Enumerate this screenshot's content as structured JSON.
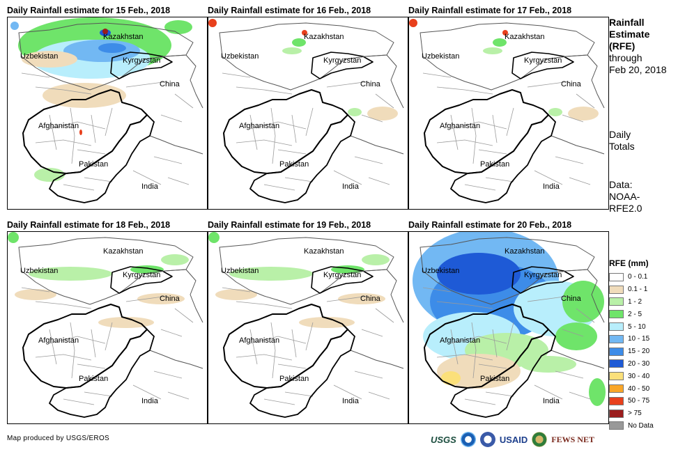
{
  "panels": [
    {
      "title": "Daily Rainfall estimate for 15 Feb., 2018",
      "intensity": "moderate-north"
    },
    {
      "title": "Daily Rainfall estimate for 16 Feb., 2018",
      "intensity": "dry"
    },
    {
      "title": "Daily Rainfall estimate for 17 Feb., 2018",
      "intensity": "dry"
    },
    {
      "title": "Daily Rainfall estimate for 18 Feb., 2018",
      "intensity": "light"
    },
    {
      "title": "Daily Rainfall estimate for 19 Feb., 2018",
      "intensity": "light"
    },
    {
      "title": "Daily Rainfall estimate for 20 Feb., 2018",
      "intensity": "heavy"
    }
  ],
  "map_labels": {
    "kazakhstan": "Kazakhstan",
    "uzbekistan": "Uzbekistan",
    "kyrgyzstan": "Kyrgyzstan",
    "china": "China",
    "afghanistan": "Afghanistan",
    "pakistan": "Pakistan",
    "india": "India"
  },
  "side": {
    "title_lines": [
      "Rainfall",
      "Estimate",
      "(RFE)"
    ],
    "through_lines": [
      "through",
      "Feb 20, 2018"
    ],
    "daily_lines": [
      "Daily",
      "Totals"
    ],
    "data_lines": [
      "Data:",
      "NOAA-",
      "RFE2.0"
    ]
  },
  "legend": {
    "title": "RFE (mm)",
    "items": [
      {
        "label": "0 - 0.1",
        "color": "#ffffff"
      },
      {
        "label": "0.1 - 1",
        "color": "#f0dcbb"
      },
      {
        "label": "1 - 2",
        "color": "#b9f0a8"
      },
      {
        "label": "2 - 5",
        "color": "#6fe46a"
      },
      {
        "label": "5 - 10",
        "color": "#b8eefc"
      },
      {
        "label": "10 - 15",
        "color": "#72b8f3"
      },
      {
        "label": "15 - 20",
        "color": "#3d8ce8"
      },
      {
        "label": "20 - 30",
        "color": "#1e5ad6"
      },
      {
        "label": "30 - 40",
        "color": "#fbe07a"
      },
      {
        "label": "40 - 50",
        "color": "#f9a628"
      },
      {
        "label": "50 - 75",
        "color": "#e8401c"
      },
      {
        "label": "> 75",
        "color": "#9b1c1c"
      },
      {
        "label": "No Data",
        "color": "#999999"
      }
    ]
  },
  "credit": "Map produced by USGS/EROS",
  "logos": {
    "usgs": "USGS",
    "usaid": "USAID",
    "fews": "FEWS NET"
  }
}
